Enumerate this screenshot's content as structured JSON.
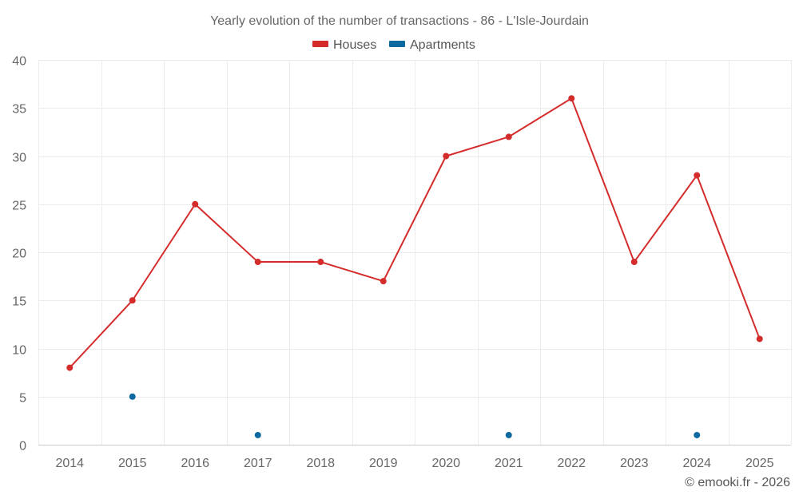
{
  "chart_data": {
    "type": "line",
    "title": "Yearly evolution of the number of transactions - 86 - L'Isle-Jourdain",
    "categories": [
      "2014",
      "2015",
      "2016",
      "2017",
      "2018",
      "2019",
      "2020",
      "2021",
      "2022",
      "2023",
      "2024",
      "2025"
    ],
    "yticks": [
      "0",
      "5",
      "10",
      "15",
      "20",
      "25",
      "30",
      "35",
      "40"
    ],
    "ylim": [
      0,
      40
    ],
    "grid": true,
    "legend_position": "top-center",
    "series": [
      {
        "name": "Houses",
        "color": "#d42b2b",
        "connected": true,
        "values": [
          8,
          15,
          25,
          19,
          19,
          17,
          30,
          32,
          36,
          19,
          28,
          11
        ]
      },
      {
        "name": "Apartments",
        "color": "#0d6aa0",
        "connected": false,
        "values": [
          null,
          5,
          null,
          1,
          null,
          null,
          null,
          1,
          null,
          null,
          1,
          null
        ]
      }
    ]
  },
  "credit": "© emooki.fr - 2026"
}
